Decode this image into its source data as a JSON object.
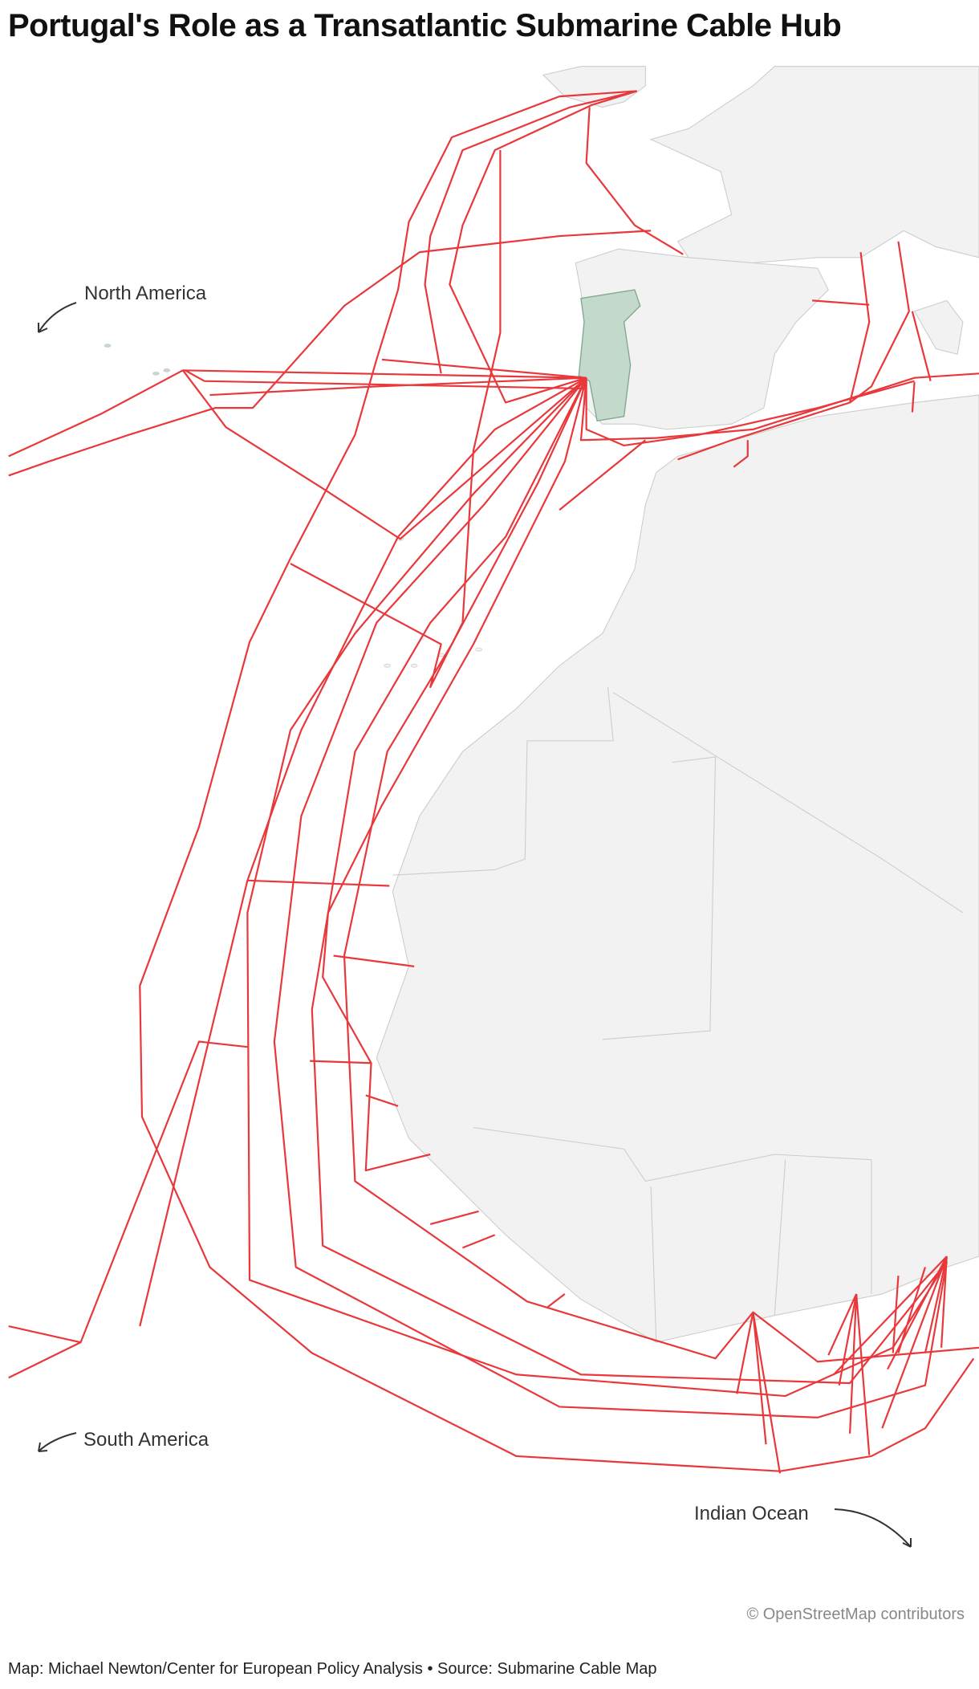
{
  "title": "Portugal's Role as a Transatlantic Submarine Cable Hub",
  "labels": {
    "north_america": "North America",
    "south_america": "South America",
    "indian_ocean": "Indian Ocean"
  },
  "attribution": "© OpenStreetMap contributors",
  "credit": "Map: Michael Newton/Center for European Policy Analysis • Source: Submarine Cable Map",
  "colors": {
    "cable": "#e8383b",
    "land": "#f2f2f2",
    "border": "#cccccc",
    "portugal": "#c3d9cc",
    "portugal_border": "#7fa890"
  }
}
